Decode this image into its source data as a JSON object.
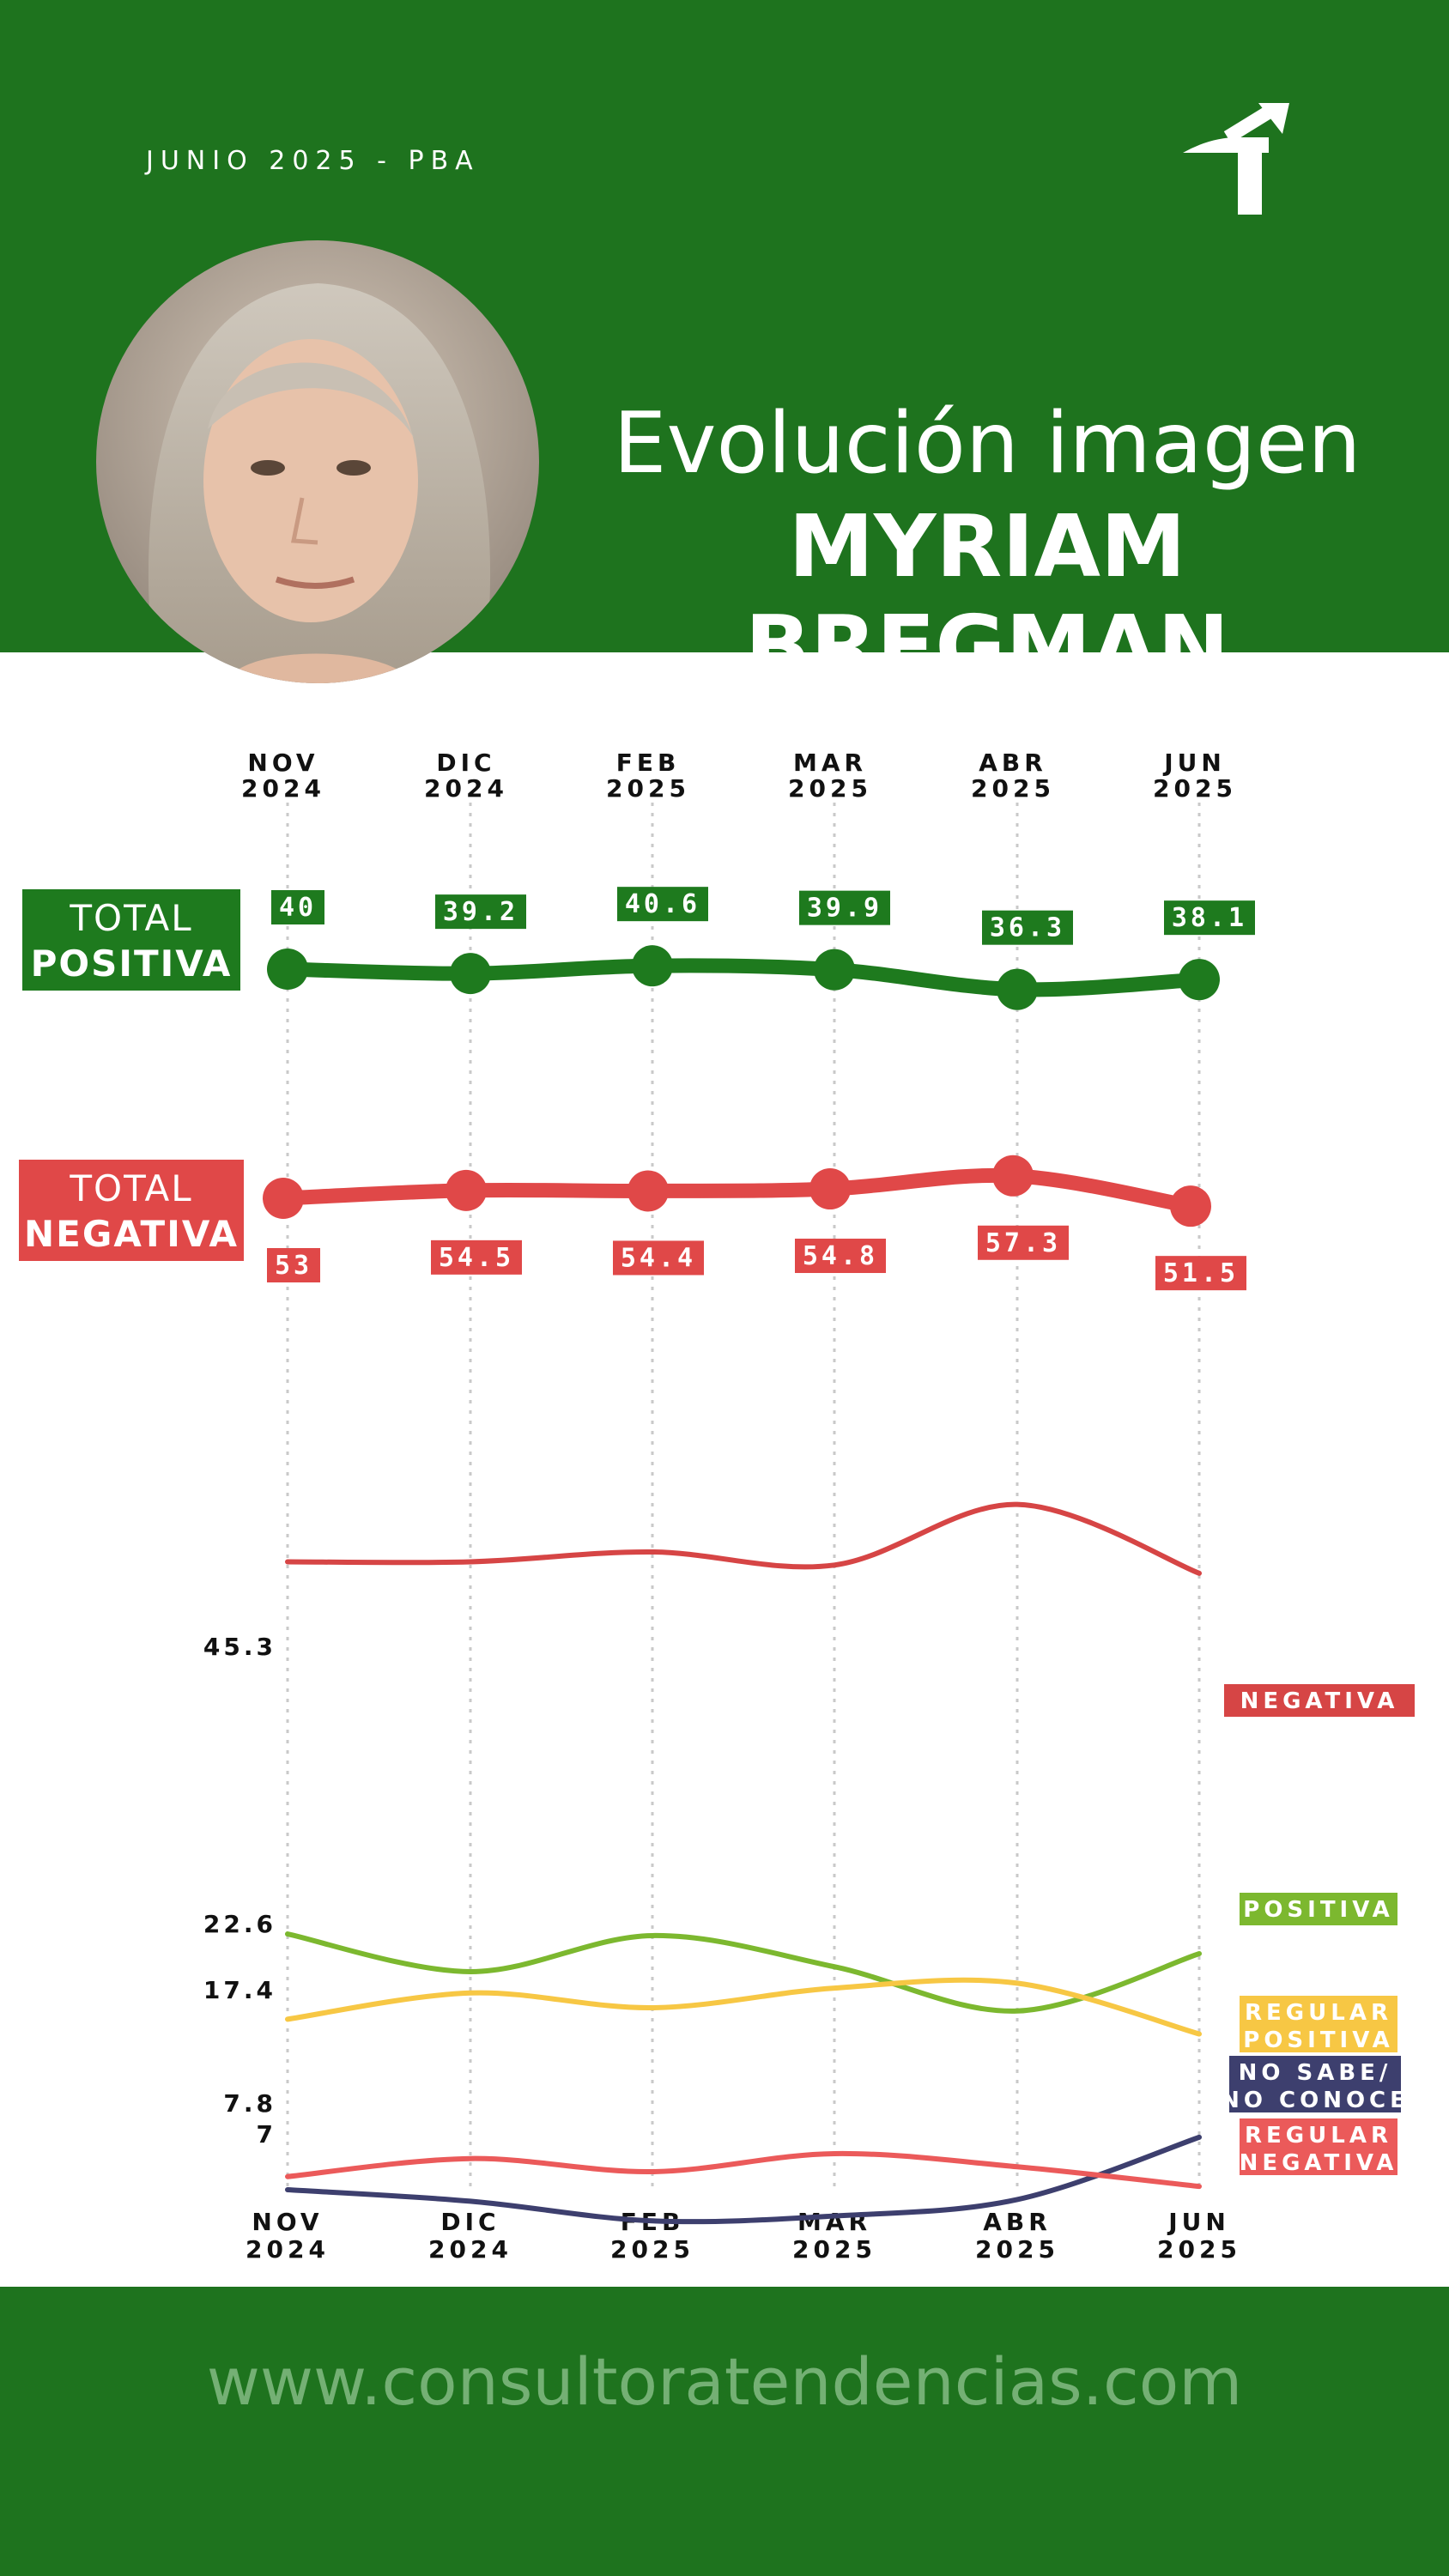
{
  "header": {
    "date_label": "JUNIO 2025 - PBA",
    "title_line1": "Evolución imagen",
    "title_line2": "MYRIAM BREGMAN",
    "logo_icon": "arrow-signpost-icon",
    "photo_icon": "portrait-photo"
  },
  "footer": {
    "website": "www.consultoratendencias.com"
  },
  "colors": {
    "brand_green": "#1e731e",
    "total_positiva": "#1e7a1e",
    "total_negativa": "#e04848",
    "negativa": "#d64545",
    "positiva": "#7cb82f",
    "regular_positiva": "#f7c744",
    "no_sabe": "#3d3f6e",
    "regular_negativa": "#eb5a5a"
  },
  "chart_data": [
    {
      "type": "line",
      "categories": [
        [
          "NOV",
          "2024"
        ],
        [
          "DIC",
          "2024"
        ],
        [
          "FEB",
          "2025"
        ],
        [
          "MAR",
          "2025"
        ],
        [
          "ABR",
          "2025"
        ],
        [
          "JUN",
          "2025"
        ]
      ],
      "series": [
        {
          "name": "TOTAL POSITIVA",
          "label_line1": "TOTAL",
          "label_line2": "POSITIVA",
          "values": [
            40,
            39.2,
            40.6,
            39.9,
            36.3,
            38.1
          ],
          "labels": [
            "40",
            "39.2",
            "40.6",
            "39.9",
            "36.3",
            "38.1"
          ]
        },
        {
          "name": "TOTAL NEGATIVA",
          "label_line1": "TOTAL",
          "label_line2": "NEGATIVA",
          "values": [
            53,
            54.5,
            54.4,
            54.8,
            57.3,
            51.5
          ],
          "labels": [
            "53",
            "54.5",
            "54.4",
            "54.8",
            "57.3",
            "51.5"
          ]
        }
      ]
    },
    {
      "type": "line",
      "categories": [
        [
          "NOV",
          "2024"
        ],
        [
          "DIC",
          "2024"
        ],
        [
          "FEB",
          "2025"
        ],
        [
          "MAR",
          "2025"
        ],
        [
          "ABR",
          "2025"
        ],
        [
          "JUN",
          "2025"
        ]
      ],
      "y_labels": [
        {
          "value": 45.3,
          "text": "45.3"
        },
        {
          "value": 22.6,
          "text": "22.6"
        },
        {
          "value": 17.4,
          "text": "17.4"
        },
        {
          "value": 7.8,
          "text": "7.8"
        },
        {
          "value": 7,
          "text": "7"
        }
      ],
      "series": [
        {
          "name": "NEGATIVA",
          "label_lines": [
            "NEGATIVA"
          ],
          "values": [
            45.3,
            45.3,
            45.9,
            45.1,
            48.8,
            44.6
          ]
        },
        {
          "name": "POSITIVA",
          "label_lines": [
            "POSITIVA"
          ],
          "values": [
            22.6,
            20.3,
            22.5,
            20.6,
            17.9,
            21.4
          ]
        },
        {
          "name": "REGULAR POSITIVA",
          "label_lines": [
            "REGULAR",
            "POSITIVA"
          ],
          "values": [
            17.4,
            19.0,
            18.1,
            19.3,
            19.6,
            16.5
          ]
        },
        {
          "name": "NO SABE/ NO CONOCE",
          "label_lines": [
            "NO SABE/",
            "NO CONOCE"
          ],
          "values": [
            7.0,
            6.3,
            5.1,
            5.4,
            6.4,
            10.2
          ]
        },
        {
          "name": "REGULAR NEGATIVA",
          "label_lines": [
            "REGULAR",
            "NEGATIVA"
          ],
          "values": [
            7.8,
            8.9,
            8.1,
            9.2,
            8.4,
            7.2
          ]
        }
      ]
    }
  ]
}
